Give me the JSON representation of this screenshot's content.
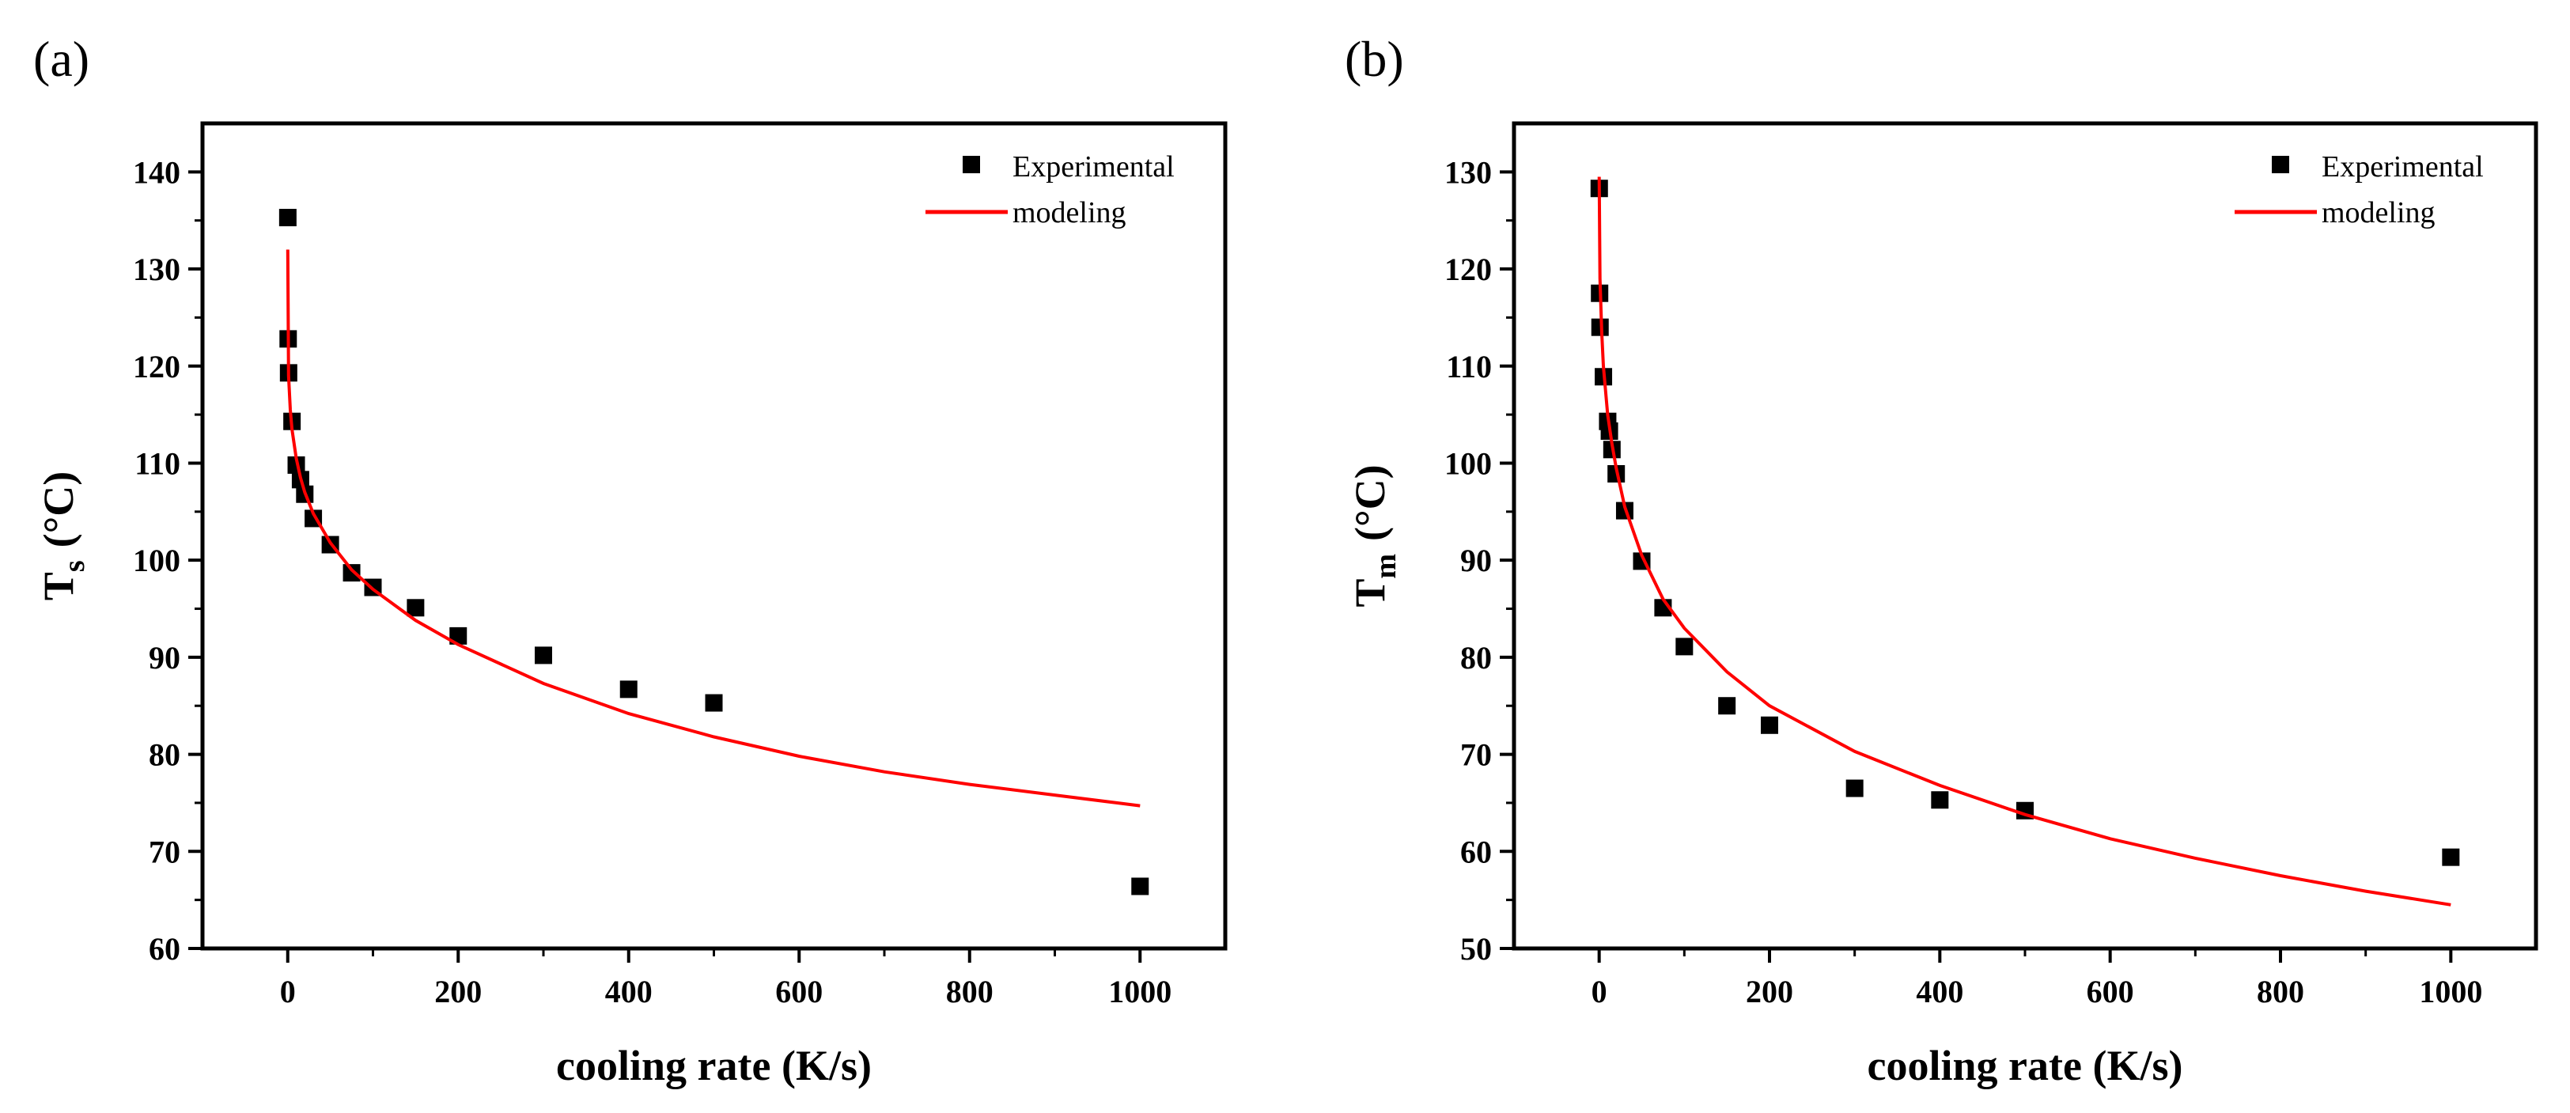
{
  "chart_data": [
    {
      "type": "scatter",
      "panel_label": "(a)",
      "ylabel_main": "T",
      "ylabel_sub": "s",
      "ylabel_unit": "(°C)",
      "xlabel": "cooling rate (K/s)",
      "xlim": [
        -100,
        1100
      ],
      "ylim": [
        60,
        145
      ],
      "xticks": [
        0,
        200,
        400,
        600,
        800,
        1000
      ],
      "yticks": [
        60,
        70,
        80,
        90,
        100,
        110,
        120,
        130,
        140
      ],
      "legend_position": "top-right",
      "series": [
        {
          "name": "Experimental",
          "kind": "markers",
          "color": "#000000",
          "x": [
            0.1,
            0.5,
            1,
            5,
            10,
            15,
            20,
            30,
            50,
            75,
            100,
            150,
            200,
            300,
            400,
            500,
            1000
          ],
          "y": [
            135.3,
            122.8,
            119.3,
            114.3,
            109.8,
            108.3,
            106.8,
            104.3,
            101.6,
            98.7,
            97.2,
            95.1,
            92.2,
            90.2,
            86.7,
            85.3,
            66.4
          ]
        },
        {
          "name": "modeling",
          "kind": "line",
          "color": "#ff0000",
          "x": [
            0,
            1,
            3,
            5,
            10,
            15,
            20,
            30,
            50,
            75,
            100,
            150,
            200,
            300,
            400,
            500,
            600,
            700,
            800,
            900,
            1000
          ],
          "y": [
            132,
            119,
            115.5,
            113.5,
            110.5,
            108.5,
            107,
            104.8,
            101.8,
            99,
            97,
            93.8,
            91.3,
            87.3,
            84.2,
            81.8,
            79.8,
            78.2,
            76.9,
            75.8,
            74.7
          ]
        }
      ]
    },
    {
      "type": "scatter",
      "panel_label": "(b)",
      "ylabel_main": "T",
      "ylabel_sub": "m",
      "ylabel_unit": "(°C)",
      "xlabel": "cooling rate (K/s)",
      "xlim": [
        -100,
        1100
      ],
      "ylim": [
        50,
        135
      ],
      "xticks": [
        0,
        200,
        400,
        600,
        800,
        1000
      ],
      "yticks": [
        50,
        60,
        70,
        80,
        90,
        100,
        110,
        120,
        130
      ],
      "legend_position": "top-right",
      "series": [
        {
          "name": "Experimental",
          "kind": "markers",
          "color": "#000000",
          "x": [
            0.1,
            0.5,
            1,
            5,
            10,
            12,
            15,
            20,
            30,
            50,
            75,
            100,
            150,
            200,
            300,
            400,
            500,
            1000
          ],
          "y": [
            128.3,
            117.5,
            114,
            108.9,
            104.3,
            103.3,
            101.4,
            98.9,
            95.1,
            89.9,
            85.1,
            81.1,
            75,
            73,
            66.5,
            65.3,
            64.2,
            59.4
          ]
        },
        {
          "name": "modeling",
          "kind": "line",
          "color": "#ff0000",
          "x": [
            0,
            1,
            3,
            5,
            10,
            15,
            20,
            30,
            50,
            75,
            100,
            150,
            200,
            300,
            400,
            500,
            600,
            700,
            800,
            900,
            1000
          ],
          "y": [
            129.5,
            119,
            113.5,
            110,
            105,
            102,
            99.5,
            95.5,
            90.5,
            86,
            83,
            78.5,
            75,
            70.3,
            66.8,
            63.8,
            61.3,
            59.3,
            57.5,
            55.9,
            54.5
          ]
        }
      ]
    }
  ]
}
